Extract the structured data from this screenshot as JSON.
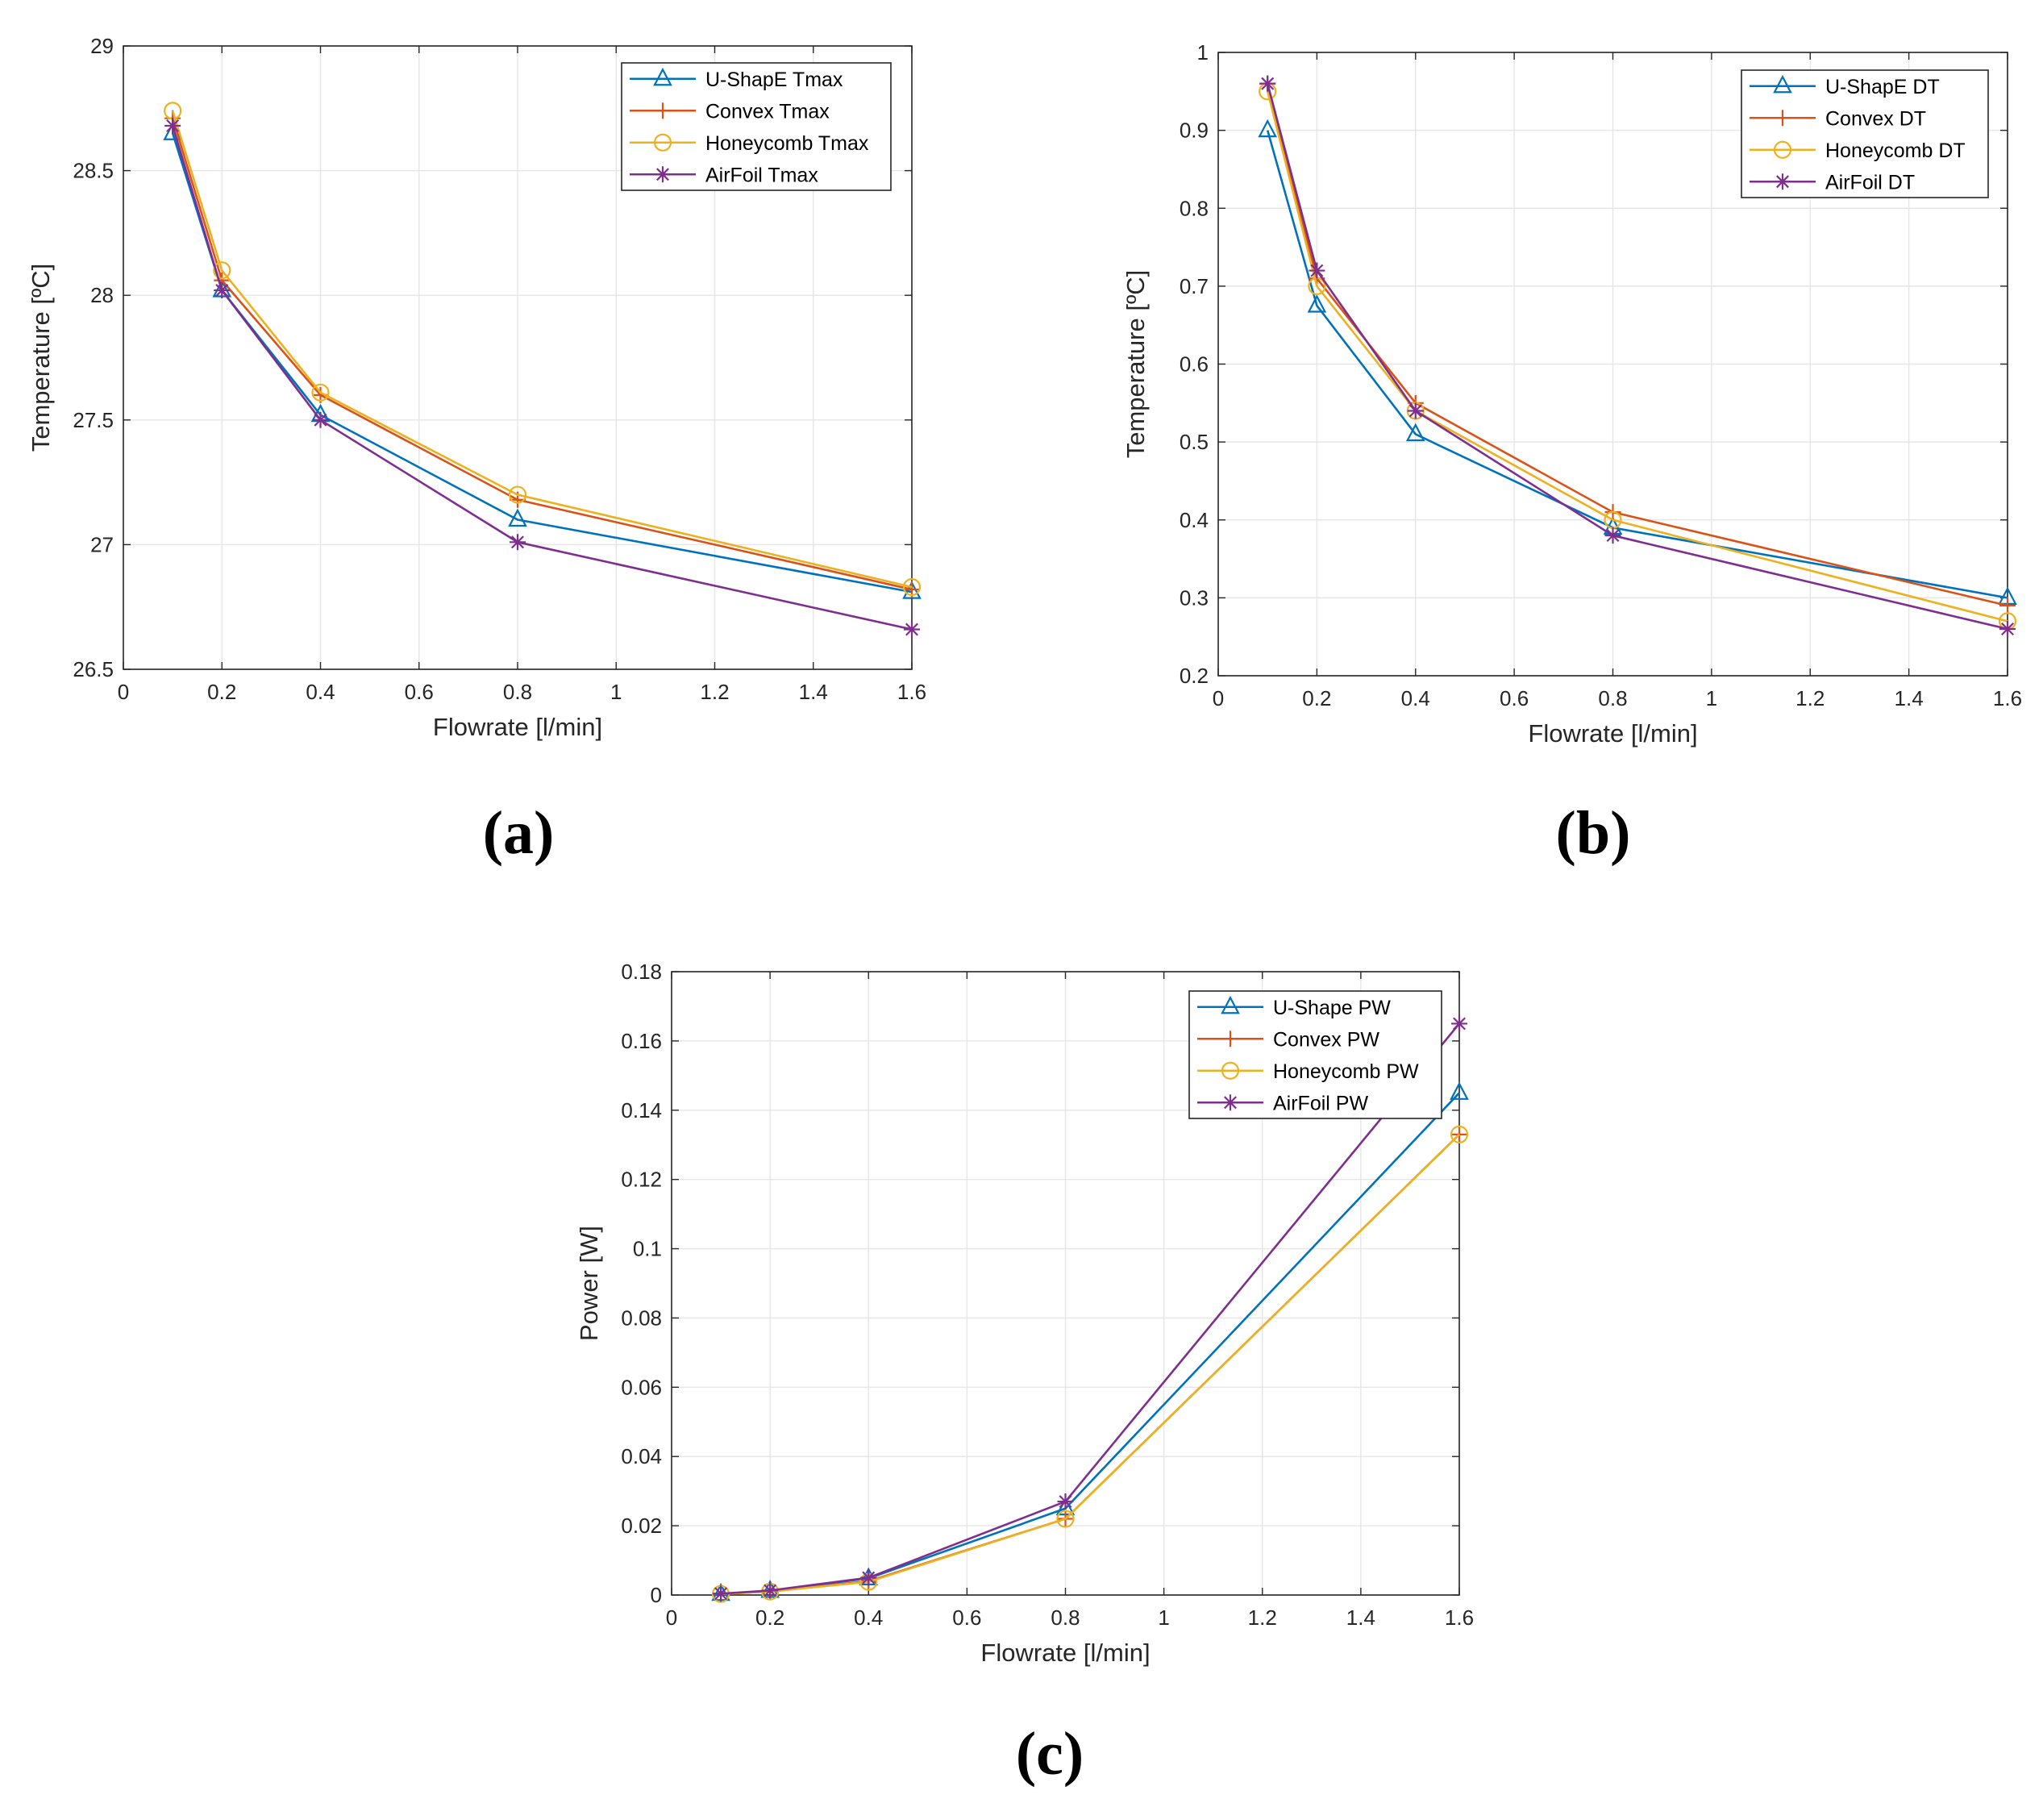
{
  "chart_data": [
    {
      "type": "line",
      "caption": "(a)",
      "xlabel": "Flowrate [l/min]",
      "ylabel": "Temperature [ºC]",
      "xlim": [
        0,
        1.6
      ],
      "ylim": [
        26.5,
        29
      ],
      "xticks": [
        0,
        0.2,
        0.4,
        0.6,
        0.8,
        1,
        1.2,
        1.4,
        1.6
      ],
      "xtick_labels": [
        "0",
        "0.2",
        "0.4",
        "0.6",
        "0.8",
        "1",
        "1.2",
        "1.4",
        "1.6"
      ],
      "yticks": [
        26.5,
        27,
        27.5,
        28,
        28.5,
        29
      ],
      "ytick_labels": [
        "26.5",
        "27",
        "27.5",
        "28",
        "28.5",
        "29"
      ],
      "grid": true,
      "legend_position": "top-right",
      "x": [
        0.1,
        0.2,
        0.4,
        0.8,
        1.6
      ],
      "series": [
        {
          "name": "U-ShapE Tmax",
          "color": "#0072BD",
          "marker": "triangle",
          "values": [
            28.65,
            28.02,
            27.52,
            27.1,
            26.81
          ]
        },
        {
          "name": "Convex Tmax",
          "color": "#D95319",
          "marker": "plus",
          "values": [
            28.71,
            28.06,
            27.6,
            27.18,
            26.82
          ]
        },
        {
          "name": "Honeycomb Tmax",
          "color": "#EDB120",
          "marker": "circle",
          "values": [
            28.74,
            28.1,
            27.61,
            27.2,
            26.83
          ]
        },
        {
          "name": "AirFoil Tmax",
          "color": "#7E2F8E",
          "marker": "asterisk",
          "values": [
            28.68,
            28.02,
            27.5,
            27.01,
            26.66
          ]
        }
      ]
    },
    {
      "type": "line",
      "caption": "(b)",
      "xlabel": "Flowrate [l/min]",
      "ylabel": "Temperature [ºC]",
      "xlim": [
        0,
        1.6
      ],
      "ylim": [
        0.2,
        1
      ],
      "xticks": [
        0,
        0.2,
        0.4,
        0.6,
        0.8,
        1,
        1.2,
        1.4,
        1.6
      ],
      "xtick_labels": [
        "0",
        "0.2",
        "0.4",
        "0.6",
        "0.8",
        "1",
        "1.2",
        "1.4",
        "1.6"
      ],
      "yticks": [
        0.2,
        0.3,
        0.4,
        0.5,
        0.6,
        0.7,
        0.8,
        0.9,
        1
      ],
      "ytick_labels": [
        "0.2",
        "0.3",
        "0.4",
        "0.5",
        "0.6",
        "0.7",
        "0.8",
        "0.9",
        "1"
      ],
      "grid": true,
      "legend_position": "top-right",
      "x": [
        0.1,
        0.2,
        0.4,
        0.8,
        1.6
      ],
      "series": [
        {
          "name": "U-ShapE DT",
          "color": "#0072BD",
          "marker": "triangle",
          "values": [
            0.9,
            0.675,
            0.51,
            0.39,
            0.3
          ]
        },
        {
          "name": "Convex DT",
          "color": "#D95319",
          "marker": "plus",
          "values": [
            0.96,
            0.71,
            0.55,
            0.41,
            0.29
          ]
        },
        {
          "name": "Honeycomb DT",
          "color": "#EDB120",
          "marker": "circle",
          "values": [
            0.95,
            0.7,
            0.54,
            0.4,
            0.27
          ]
        },
        {
          "name": "AirFoil DT",
          "color": "#7E2F8E",
          "marker": "asterisk",
          "values": [
            0.96,
            0.72,
            0.54,
            0.38,
            0.26
          ]
        }
      ]
    },
    {
      "type": "line",
      "caption": "(c)",
      "xlabel": "Flowrate [l/min]",
      "ylabel": "Power [W]",
      "xlim": [
        0,
        1.6
      ],
      "ylim": [
        0,
        0.18
      ],
      "xticks": [
        0,
        0.2,
        0.4,
        0.6,
        0.8,
        1,
        1.2,
        1.4,
        1.6
      ],
      "xtick_labels": [
        "0",
        "0.2",
        "0.4",
        "0.6",
        "0.8",
        "1",
        "1.2",
        "1.4",
        "1.6"
      ],
      "yticks": [
        0,
        0.02,
        0.04,
        0.06,
        0.08,
        0.1,
        0.12,
        0.14,
        0.16,
        0.18
      ],
      "ytick_labels": [
        "0",
        "0.02",
        "0.04",
        "0.06",
        "0.08",
        "0.1",
        "0.12",
        "0.14",
        "0.16",
        "0.18"
      ],
      "grid": true,
      "legend_position": "top-right",
      "x": [
        0.1,
        0.2,
        0.4,
        0.8,
        1.6
      ],
      "series": [
        {
          "name": "U-Shape PW",
          "color": "#0072BD",
          "marker": "triangle",
          "values": [
            0.0003,
            0.0012,
            0.0048,
            0.025,
            0.145
          ]
        },
        {
          "name": "Convex PW",
          "color": "#D95319",
          "marker": "plus",
          "values": [
            0.0003,
            0.001,
            0.004,
            0.022,
            0.133
          ]
        },
        {
          "name": "Honeycomb PW",
          "color": "#EDB120",
          "marker": "circle",
          "values": [
            0.0003,
            0.001,
            0.0038,
            0.022,
            0.133
          ]
        },
        {
          "name": "AirFoil PW",
          "color": "#7E2F8E",
          "marker": "asterisk",
          "values": [
            0.0004,
            0.0013,
            0.005,
            0.027,
            0.165
          ]
        }
      ]
    }
  ]
}
